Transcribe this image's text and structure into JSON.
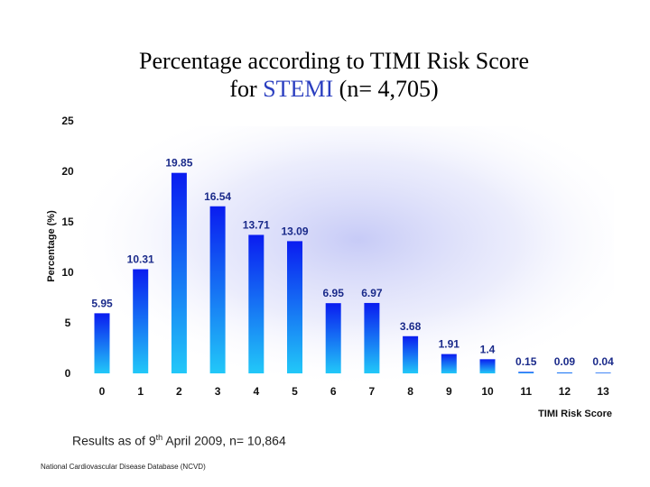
{
  "title": {
    "line1": "Percentage according to TIMI Risk Score",
    "line2_prefix": "for ",
    "line2_accent": "STEMI",
    "line2_suffix": " (n= 4,705)"
  },
  "footnote": {
    "prefix": "Results as of 9",
    "sup": "th",
    "suffix": " April 2009, n= 10,864"
  },
  "source": "National Cardiovascular Disease Database (NCVD)",
  "colors": {
    "accent": "#2b3fc0",
    "bar_top": "#0a1cf0",
    "bar_bottom": "#22c8f8"
  },
  "chart_data": {
    "type": "bar",
    "categories": [
      "0",
      "1",
      "2",
      "3",
      "4",
      "5",
      "6",
      "7",
      "8",
      "9",
      "10",
      "11",
      "12",
      "13"
    ],
    "values": [
      5.95,
      10.31,
      19.85,
      16.54,
      13.71,
      13.09,
      6.95,
      6.97,
      3.68,
      1.91,
      1.4,
      0.15,
      0.09,
      0.04
    ],
    "data_labels": [
      "5.95",
      "10.31",
      "19.85",
      "16.54",
      "13.71",
      "13.09",
      "6.95",
      "6.97",
      "3.68",
      "1.91",
      "1.4",
      "0.15",
      "0.09",
      "0.04"
    ],
    "xlabel": "TIMI Risk Score",
    "ylabel": "Percentage (%)",
    "ylim": [
      0,
      25
    ],
    "yticks": [
      0,
      5,
      10,
      15,
      20,
      25
    ],
    "grid": false,
    "legend": "none"
  }
}
